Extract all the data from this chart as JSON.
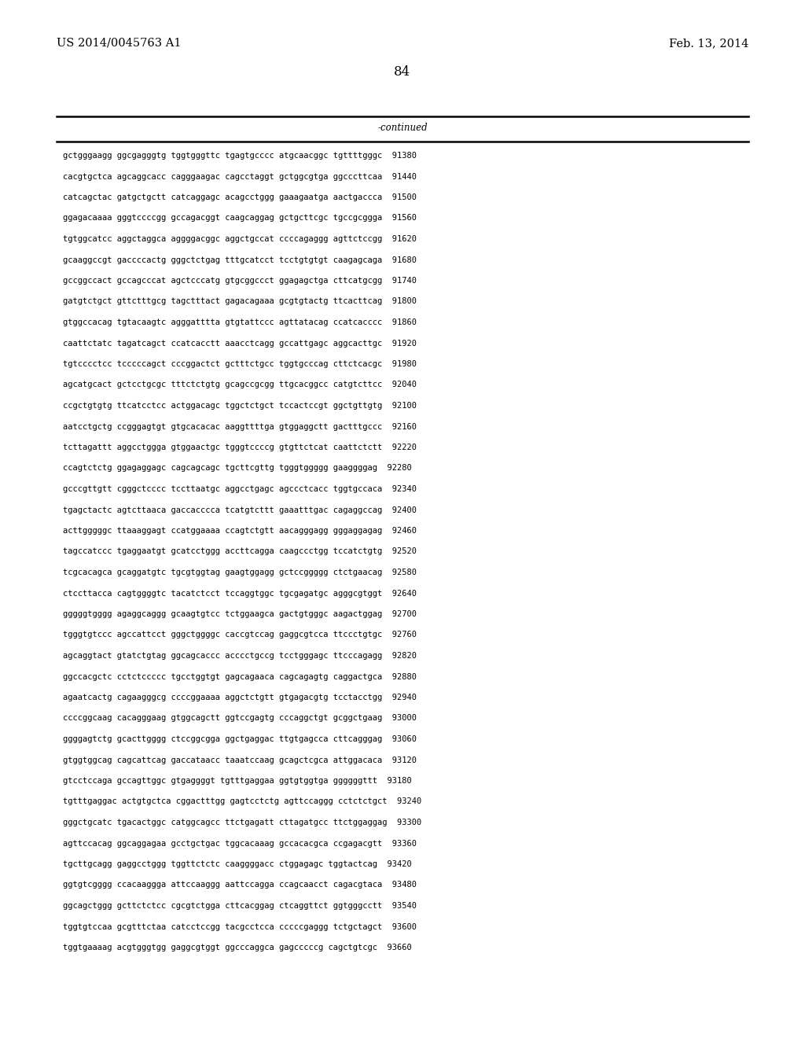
{
  "patent_number": "US 2014/0045763 A1",
  "date": "Feb. 13, 2014",
  "page_number": "84",
  "continued_label": "-continued",
  "background_color": "#ffffff",
  "text_color": "#000000",
  "font_size": 7.5,
  "header_font_size": 10.5,
  "page_num_font_size": 12,
  "sequence_lines": [
    "gctgggaagg ggcgagggtg tggtgggttc tgagtgcccc atgcaacggc tgttttgggc  91380",
    "cacgtgctca agcaggcacc cagggaagac cagcctaggt gctggcgtga ggcccttcaa  91440",
    "catcagctac gatgctgctt catcaggagc acagcctggg gaaagaatga aactgaccca  91500",
    "ggagacaaaa gggtccccgg gccagacggt caagcaggag gctgcttcgc tgccgcggga  91560",
    "tgtggcatcc aggctaggca aggggacggc aggctgccat ccccagaggg agttctccgg  91620",
    "gcaaggccgt gaccccactg gggctctgag tttgcatcct tcctgtgtgt caagagcaga  91680",
    "gccggccact gccagcccat agctcccatg gtgcggccct ggagagctga cttcatgcgg  91740",
    "gatgtctgct gttctttgcg tagctttact gagacagaaa gcgtgtactg ttcacttcag  91800",
    "gtggccacag tgtacaagtc agggatttta gtgtattccc agttatacag ccatcacccc  91860",
    "caattctatc tagatcagct ccatcacctt aaacctcagg gccattgagc aggcacttgc  91920",
    "tgtcccctcc tcccccagct cccggactct gctttctgcc tggtgcccag cttctcacgc  91980",
    "agcatgcact gctcctgcgc tttctctgtg gcagccgcgg ttgcacggcc catgtcttcc  92040",
    "ccgctgtgtg ttcatcctcc actggacagc tggctctgct tccactccgt ggctgttgtg  92100",
    "aatcctgctg ccgggagtgt gtgcacacac aaggttttga gtggaggctt gactttgccc  92160",
    "tcttagattt aggcctggga gtggaactgc tgggtccccg gtgttctcat caattctctt  92220",
    "ccagtctctg ggagaggagc cagcagcagc tgcttcgttg tgggtggggg gaaggggag  92280",
    "gcccgttgtt cgggctcccc tccttaatgc aggcctgagc agccctcacc tggtgccaca  92340",
    "tgagctactc agtcttaaca gaccacccca tcatgtcttt gaaatttgac cagaggccag  92400",
    "acttgggggc ttaaaggagt ccatggaaaa ccagtctgtt aacagggagg gggaggagag  92460",
    "tagccatccc tgaggaatgt gcatcctggg accttcagga caagccctgg tccatctgtg  92520",
    "tcgcacagca gcaggatgtc tgcgtggtag gaagtggagg gctccggggg ctctgaacag  92580",
    "ctccttacca cagtggggtc tacatctcct tccaggtggc tgcgagatgc agggcgtggt  92640",
    "gggggtgggg agaggcaggg gcaagtgtcc tctggaagca gactgtgggc aagactggag  92700",
    "tgggtgtccc agccattcct gggctggggc caccgtccag gaggcgtcca ttccctgtgc  92760",
    "agcaggtact gtatctgtag ggcagcaccc acccctgccg tcctgggagc ttcccagagg  92820",
    "ggccacgctc cctctccccc tgcctggtgt gagcagaaca cagcagagtg caggactgca  92880",
    "agaatcactg cagaagggcg ccccggaaaa aggctctgtt gtgagacgtg tcctacctgg  92940",
    "ccccggcaag cacagggaag gtggcagctt ggtccgagtg cccaggctgt gcggctgaag  93000",
    "ggggagtctg gcacttgggg ctccggcgga ggctgaggac ttgtgagcca cttcagggag  93060",
    "gtggtggcag cagcattcag gaccataacc taaatccaag gcagctcgca attggacaca  93120",
    "gtcctccaga gccagttggc gtgaggggt tgtttgaggaa ggtgtggtga ggggggttt  93180",
    "tgtttgaggac actgtgctca cggactttgg gagtcctctg agttccaggg cctctctgct  93240",
    "gggctgcatc tgacactggc catggcagcc ttctgagatt cttagatgcc ttctggaggag  93300",
    "agttccacag ggcaggagaa gcctgctgac tggcacaaag gccacacgca ccgagacgtt  93360",
    "tgcttgcagg gaggcctggg tggttctctc caaggggacc ctggagagc tggtactcag  93420",
    "ggtgtcgggg ccacaaggga attccaaggg aattccagga ccagcaacct cagacgtaca  93480",
    "ggcagctggg gcttctctcc cgcgtctgga cttcacggag ctcaggttct ggtgggcctt  93540",
    "tggtgtccaa gcgtttctaa catcctccgg tacgcctcca cccccgaggg tctgctagct  93600",
    "tggtgaaaag acgtgggtgg gaggcgtggt ggcccaggca gagcccccg cagctgtcgc  93660"
  ]
}
